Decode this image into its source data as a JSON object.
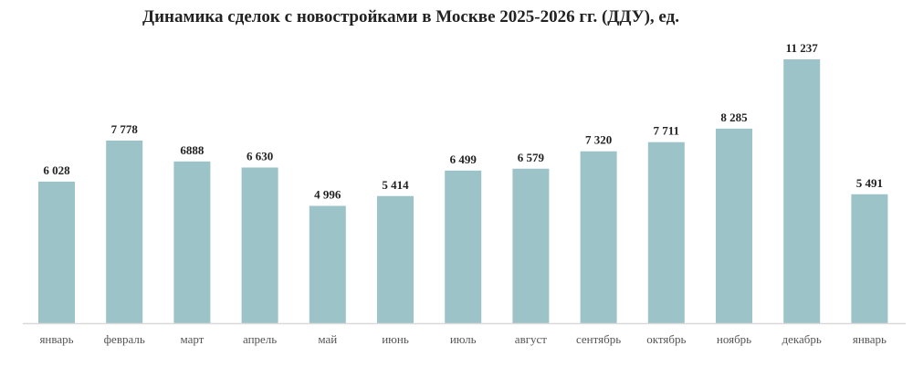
{
  "chart_data": {
    "type": "bar",
    "title": "Динамика сделок с новостройками в Москве 2025-2026 гг. (ДДУ), ед.",
    "xlabel": "",
    "ylabel": "",
    "categories": [
      "январь",
      "февраль",
      "март",
      "апрель",
      "май",
      "июнь",
      "июль",
      "август",
      "сентябрь",
      "октябрь",
      "ноябрь",
      "декабрь",
      "январь"
    ],
    "values": [
      6028,
      7778,
      6888,
      6630,
      4996,
      5414,
      6499,
      6579,
      7320,
      7711,
      8285,
      11237,
      5491
    ],
    "data_labels": [
      "6 028",
      "7 778",
      "6888",
      "6 630",
      "4 996",
      "5 414",
      "6 499",
      "6 579",
      "7 320",
      "7 711",
      "8 285",
      "11 237",
      "5 491"
    ],
    "grid": false,
    "legend": "none",
    "bar_color": "#9cc3c8",
    "axis_color": "#d9d9d9"
  }
}
